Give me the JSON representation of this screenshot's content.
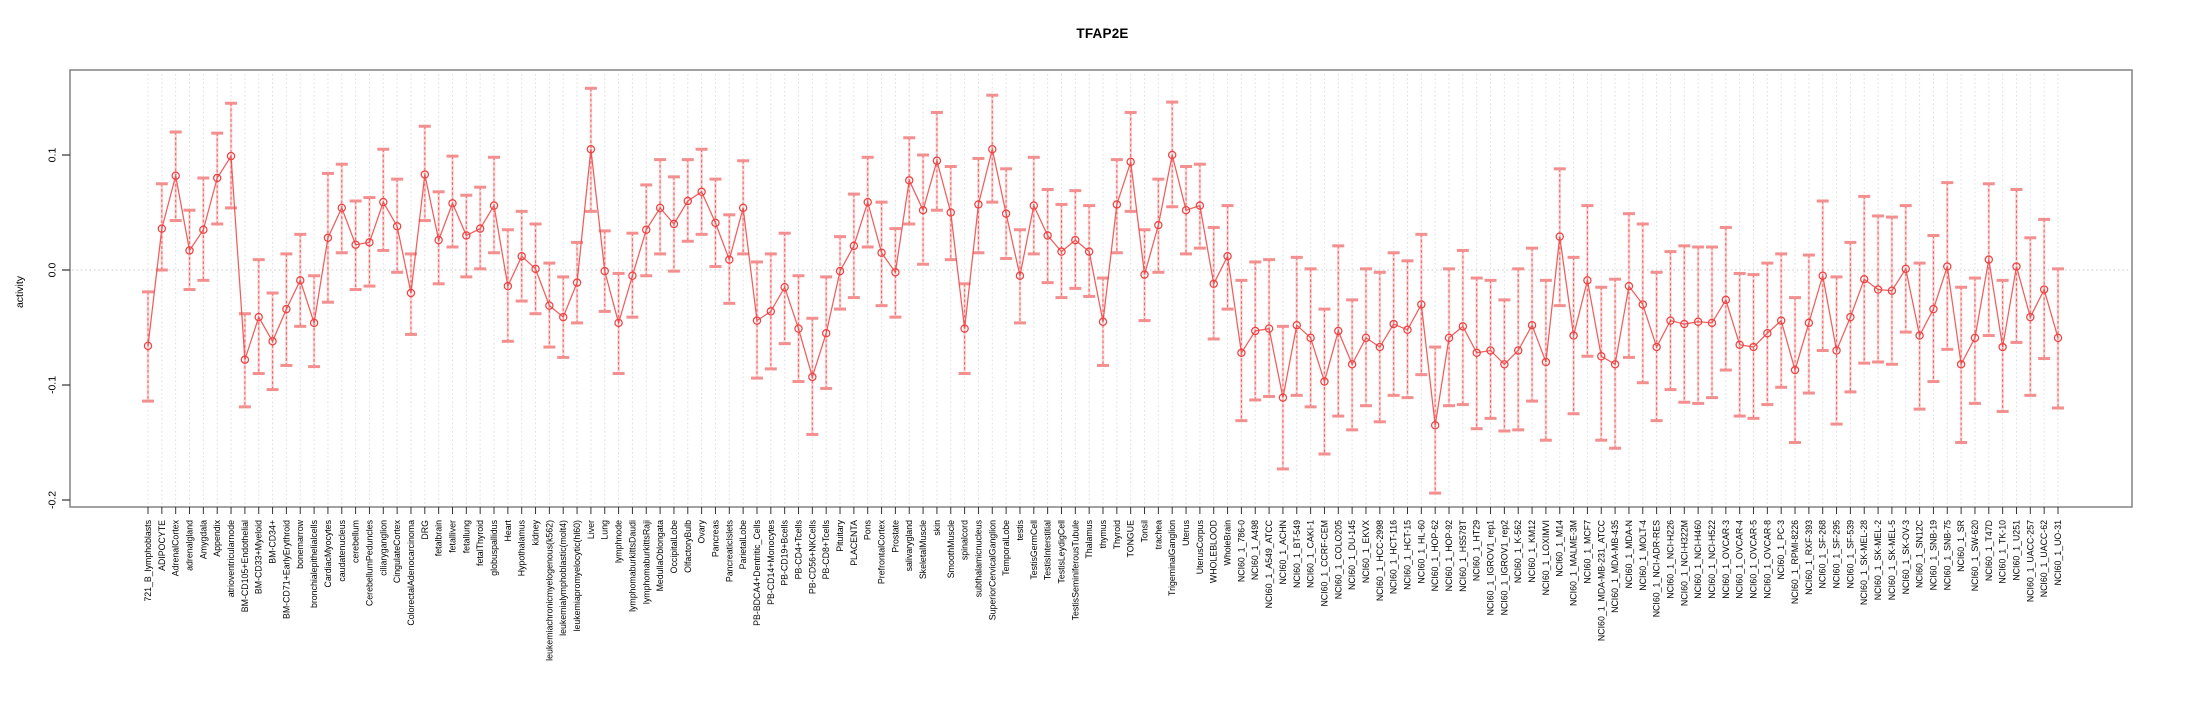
{
  "chart_data": {
    "type": "line",
    "title": "TFAP2E",
    "ylabel": "activity",
    "xlabel": "",
    "ylim": [
      -0.21,
      0.175
    ],
    "yticks": [
      0.1,
      0.0,
      -0.1,
      -0.2
    ],
    "ytick_labels": [
      "0.1",
      "0.0",
      "-0.1",
      "-0.2"
    ],
    "zero_reference_line": 0.0,
    "grid": "vertical-dotted",
    "legend_position": "none",
    "marker": "open-circle",
    "series_name": "activity with error bars",
    "colors": {
      "line": "#ef4b4b",
      "marker": "#ee4242",
      "errorbar_cap": "#f48f8f",
      "errorbar_stem": "#f05555",
      "errorbar_wash": "#f8aaaa",
      "gridline": "#dfdfdf",
      "zero_line": "#c4c4c4",
      "box": "#8a8a8a",
      "tick": "#333333",
      "text": "#000000"
    },
    "categories": [
      "721_B_lymphoblasts",
      "ADIPOCYTE",
      "AdrenalCortex",
      "adrenalgland",
      "Amygdala",
      "Appendix",
      "atrioventricularnode",
      "BM-CD105+Endothelial",
      "BM-CD33+Myeloid",
      "BM-CD34+",
      "BM-CD71+EarlyErythroid",
      "bonemarrow",
      "bronchialepithelialcells",
      "CardiacMyocytes",
      "caudatenucleus",
      "cerebellum",
      "CerebellumPeduncles",
      "ciliaryganglion",
      "CingulateCortex",
      "ColorectalAdenocarcinoma",
      "DRG",
      "fetalbrain",
      "fetalliver",
      "fetallung",
      "fetalThyroid",
      "globuspallidus",
      "Heart",
      "Hypothalamus",
      "kidney",
      "leukemiachronicmyelogenous(k562)",
      "leukemialymphoblastic(molt4)",
      "leukemiapromyelocytic(hl60)",
      "Liver",
      "Lung",
      "lymphnode",
      "lymphomaburkittsDaudi",
      "lymphomaburkittsRaji",
      "MedullaOblongata",
      "OccipitalLobe",
      "OlfactoryBulb",
      "Ovary",
      "Pancreas",
      "PancreaticIslets",
      "ParietalLobe",
      "PB-BDCA4+Dentritic_Cells",
      "PB-CD14+Monocytes",
      "PB-CD19+Bcells",
      "PB-CD4+Tcells",
      "PB-CD56+NKCells",
      "PB-CD8+Tcells",
      "Pituitary",
      "PLACENTA",
      "Pons",
      "PrefrontalCortex",
      "Prostate",
      "salivarygland",
      "SkeletalMuscle",
      "skin",
      "SmoothMuscle",
      "spinalcord",
      "subthalamicnucleus",
      "SuperiorCervicalGanglion",
      "TemporalLobe",
      "testis",
      "TestisGermCell",
      "TestisInterstitial",
      "TestisLeydigCell",
      "TestisSeminiferousTubule",
      "Thalamus",
      "thymus",
      "Thyroid",
      "TONGUE",
      "Tonsil",
      "trachea",
      "TrigeminalGanglion",
      "Uterus",
      "UterusCorpus",
      "WHOLEBLOOD",
      "WholeBrain",
      "NCI60_1_786-0",
      "NCI60_1_A498",
      "NCI60_1_A549_ATCC",
      "NCI60_1_ACHN",
      "NCI60_1_BT-549",
      "NCI60_1_CAKI-1",
      "NCI60_1_CCRF-CEM",
      "NCI60_1_COLO205",
      "NCI60_1_DU-145",
      "NCI60_1_EKVX",
      "NCI60_1_HCC-2998",
      "NCI60_1_HCT-116",
      "NCI60_1_HCT-15",
      "NCI60_1_HL-60",
      "NCI60_1_HOP-62",
      "NCI60_1_HOP-92",
      "NCI60_1_HS578T",
      "NCI60_1_HT29",
      "NCI60_1_IGROV1_rep1",
      "NCI60_1_IGROV1_rep2",
      "NCI60_1_K-562",
      "NCI60_1_KM12",
      "NCI60_1_LOXIMVI",
      "NCI60_1_M14",
      "NCI60_1_MALME-3M",
      "NCI60_1_MCF7",
      "NCI60_1_MDA-MB-231_ATCC",
      "NCI60_1_MDA-MB-435",
      "NCI60_1_MDA-N",
      "NCI60_1_MOLT-4",
      "NCI60_1_NCI-ADR-RES",
      "NCI60_1_NCI-H226",
      "NCI60_1_NCI-H322M",
      "NCI60_1_NCI-H460",
      "NCI60_1_NCI-H522",
      "NCI60_1_OVCAR-3",
      "NCI60_1_OVCAR-4",
      "NCI60_1_OVCAR-5",
      "NCI60_1_OVCAR-8",
      "NCI60_1_PC-3",
      "NCI60_1_RPMI-8226",
      "NCI60_1_RXF-393",
      "NCI60_1_SF-268",
      "NCI60_1_SF-295",
      "NCI60_1_SF-539",
      "NCI60_1_SK-MEL-28",
      "NCI60_1_SK-MEL-2",
      "NCI60_1_SK-MEL-5",
      "NCI60_1_SK-OV-3",
      "NCI60_1_SN12C",
      "NCI60_1_SNB-19",
      "NCI60_1_SNB-75",
      "NCI60_1_SR",
      "NCI60_1_SW-620",
      "NCI60_1_T47D",
      "NCI60_1_TK-10",
      "NCI60_1_U251",
      "NCI60_1_UACC-257",
      "NCI60_1_UACC-62",
      "NCI60_1_UO-31"
    ],
    "values": [
      -0.066,
      0.036,
      0.082,
      0.017,
      0.035,
      0.08,
      0.099,
      -0.078,
      -0.041,
      -0.062,
      -0.034,
      -0.009,
      -0.046,
      0.028,
      0.054,
      0.022,
      0.024,
      0.059,
      0.038,
      -0.02,
      0.083,
      0.026,
      0.058,
      0.03,
      0.036,
      0.056,
      -0.014,
      0.012,
      0.001,
      -0.031,
      -0.041,
      -0.011,
      0.105,
      -0.001,
      -0.046,
      -0.005,
      0.035,
      0.054,
      0.04,
      0.06,
      0.068,
      0.041,
      0.009,
      0.054,
      -0.044,
      -0.036,
      -0.015,
      -0.051,
      -0.093,
      -0.055,
      -0.001,
      0.021,
      0.059,
      0.015,
      -0.002,
      0.078,
      0.052,
      0.095,
      0.05,
      -0.051,
      0.057,
      0.105,
      0.049,
      -0.005,
      0.056,
      0.03,
      0.016,
      0.026,
      0.016,
      -0.045,
      0.057,
      0.094,
      -0.004,
      0.039,
      0.1,
      0.052,
      0.056,
      -0.012,
      0.012,
      -0.072,
      -0.053,
      -0.051,
      -0.111,
      -0.048,
      -0.059,
      -0.097,
      -0.053,
      -0.082,
      -0.059,
      -0.067,
      -0.047,
      -0.052,
      -0.03,
      -0.135,
      -0.059,
      -0.049,
      -0.072,
      -0.07,
      -0.082,
      -0.07,
      -0.048,
      -0.08,
      0.029,
      -0.057,
      -0.009,
      -0.075,
      -0.082,
      -0.014,
      -0.03,
      -0.067,
      -0.044,
      -0.047,
      -0.045,
      -0.046,
      -0.026,
      -0.065,
      -0.067,
      -0.055,
      -0.044,
      -0.087,
      -0.046,
      -0.005,
      -0.07,
      -0.041,
      -0.008,
      -0.017,
      -0.018,
      0.001,
      -0.057,
      -0.034,
      0.003,
      -0.082,
      -0.059,
      0.009,
      -0.067,
      0.003,
      -0.041,
      -0.017,
      -0.059
    ],
    "err_lo": [
      -0.114,
      0.0,
      0.043,
      -0.017,
      -0.009,
      0.04,
      0.054,
      -0.119,
      -0.09,
      -0.104,
      -0.083,
      -0.049,
      -0.084,
      -0.028,
      0.015,
      -0.017,
      -0.014,
      0.017,
      -0.002,
      -0.056,
      0.043,
      -0.012,
      0.02,
      -0.006,
      0.001,
      0.015,
      -0.062,
      -0.027,
      -0.038,
      -0.067,
      -0.076,
      -0.046,
      0.051,
      -0.036,
      -0.09,
      -0.041,
      -0.005,
      0.014,
      -0.001,
      0.025,
      0.031,
      0.003,
      -0.029,
      0.014,
      -0.094,
      -0.086,
      -0.064,
      -0.097,
      -0.143,
      -0.103,
      -0.034,
      -0.024,
      0.02,
      -0.031,
      -0.041,
      0.04,
      0.005,
      0.052,
      0.009,
      -0.09,
      0.015,
      0.059,
      0.01,
      -0.046,
      0.014,
      -0.011,
      -0.024,
      -0.016,
      -0.023,
      -0.083,
      0.015,
      0.051,
      -0.044,
      -0.002,
      0.055,
      0.014,
      0.019,
      -0.06,
      -0.034,
      -0.131,
      -0.113,
      -0.11,
      -0.173,
      -0.109,
      -0.119,
      -0.16,
      -0.127,
      -0.139,
      -0.118,
      -0.132,
      -0.109,
      -0.111,
      -0.091,
      -0.194,
      -0.118,
      -0.117,
      -0.138,
      -0.129,
      -0.14,
      -0.139,
      -0.114,
      -0.148,
      -0.031,
      -0.125,
      -0.075,
      -0.148,
      -0.155,
      -0.076,
      -0.098,
      -0.131,
      -0.104,
      -0.115,
      -0.116,
      -0.111,
      -0.087,
      -0.127,
      -0.129,
      -0.117,
      -0.102,
      -0.15,
      -0.107,
      -0.07,
      -0.134,
      -0.106,
      -0.081,
      -0.08,
      -0.082,
      -0.054,
      -0.121,
      -0.097,
      -0.069,
      -0.15,
      -0.116,
      -0.057,
      -0.123,
      -0.063,
      -0.109,
      -0.077,
      -0.12
    ],
    "err_hi": [
      -0.019,
      0.075,
      0.12,
      0.052,
      0.08,
      0.119,
      0.145,
      -0.038,
      0.009,
      -0.02,
      0.014,
      0.031,
      -0.005,
      0.084,
      0.092,
      0.06,
      0.063,
      0.105,
      0.079,
      0.014,
      0.125,
      0.068,
      0.099,
      0.065,
      0.072,
      0.098,
      0.035,
      0.051,
      0.04,
      0.006,
      -0.006,
      0.024,
      0.158,
      0.034,
      -0.003,
      0.032,
      0.074,
      0.096,
      0.081,
      0.096,
      0.105,
      0.079,
      0.048,
      0.095,
      0.007,
      0.014,
      0.032,
      -0.005,
      -0.042,
      -0.006,
      0.029,
      0.066,
      0.098,
      0.059,
      0.036,
      0.115,
      0.1,
      0.137,
      0.09,
      -0.012,
      0.097,
      0.152,
      0.088,
      0.035,
      0.098,
      0.07,
      0.057,
      0.069,
      0.056,
      -0.007,
      0.096,
      0.137,
      0.035,
      0.079,
      0.146,
      0.09,
      0.092,
      0.037,
      0.056,
      -0.009,
      0.007,
      0.009,
      -0.049,
      0.011,
      0.001,
      -0.034,
      0.021,
      -0.026,
      0.001,
      -0.002,
      0.015,
      0.008,
      0.031,
      -0.067,
      0.001,
      0.017,
      -0.007,
      -0.009,
      -0.026,
      0.001,
      0.019,
      -0.009,
      0.088,
      0.011,
      0.056,
      -0.015,
      -0.008,
      0.049,
      0.04,
      -0.002,
      0.016,
      0.021,
      0.02,
      0.02,
      0.037,
      -0.003,
      -0.004,
      0.006,
      0.014,
      -0.024,
      0.013,
      0.06,
      -0.006,
      0.024,
      0.064,
      0.047,
      0.046,
      0.056,
      0.006,
      0.03,
      0.076,
      -0.015,
      -0.007,
      0.075,
      -0.009,
      0.07,
      0.028,
      0.044,
      0.001
    ]
  }
}
